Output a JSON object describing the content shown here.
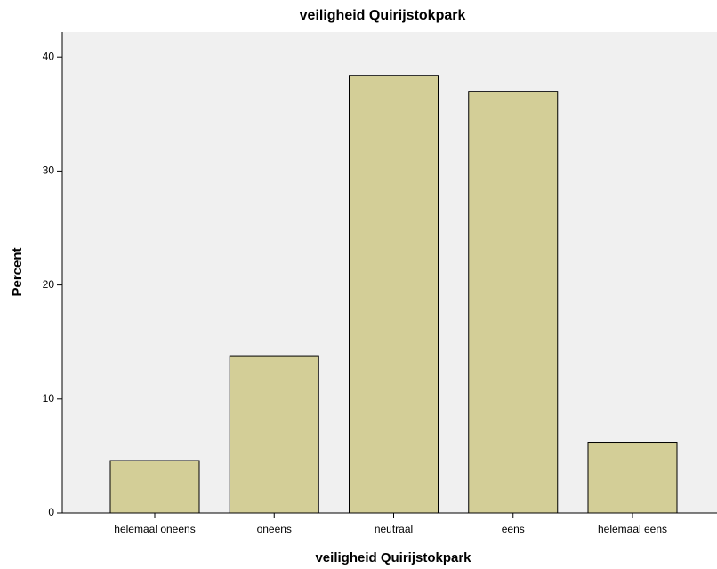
{
  "chart_data": {
    "type": "bar",
    "title": "veiligheid Quirijstokpark",
    "x_label": "veiligheid Quirijstokpark",
    "y_label": "Percent",
    "categories": [
      "helemaal oneens",
      "oneens",
      "neutraal",
      "eens",
      "helemaal eens"
    ],
    "values": [
      4.6,
      13.8,
      38.4,
      37.0,
      6.2
    ],
    "color": "#d3ce97",
    "ylim": [
      0,
      42.2
    ],
    "yticks": [
      0,
      10,
      20,
      30,
      40
    ],
    "grid": false
  }
}
